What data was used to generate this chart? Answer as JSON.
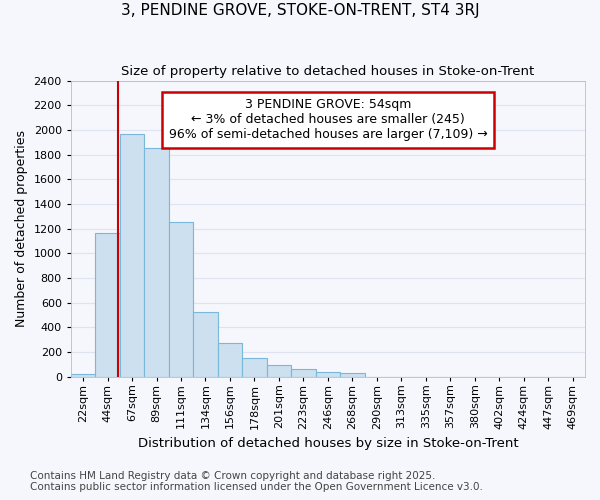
{
  "title": "3, PENDINE GROVE, STOKE-ON-TRENT, ST4 3RJ",
  "subtitle": "Size of property relative to detached houses in Stoke-on-Trent",
  "xlabel": "Distribution of detached houses by size in Stoke-on-Trent",
  "ylabel": "Number of detached properties",
  "footnote1": "Contains HM Land Registry data © Crown copyright and database right 2025.",
  "footnote2": "Contains public sector information licensed under the Open Government Licence v3.0.",
  "annotation_title": "3 PENDINE GROVE: 54sqm",
  "annotation_line1": "← 3% of detached houses are smaller (245)",
  "annotation_line2": "96% of semi-detached houses are larger (7,109) →",
  "bar_edge_color": "#7ab8d9",
  "bar_face_color": "#cce0f0",
  "vline_color": "#cc0000",
  "anno_box_color": "#cc0000",
  "categories": [
    "22sqm",
    "44sqm",
    "67sqm",
    "89sqm",
    "111sqm",
    "134sqm",
    "156sqm",
    "178sqm",
    "201sqm",
    "223sqm",
    "246sqm",
    "268sqm",
    "290sqm",
    "313sqm",
    "335sqm",
    "357sqm",
    "380sqm",
    "402sqm",
    "424sqm",
    "447sqm",
    "469sqm"
  ],
  "values": [
    25,
    1165,
    1970,
    1855,
    1250,
    520,
    270,
    150,
    90,
    60,
    40,
    30,
    0,
    0,
    0,
    0,
    0,
    0,
    0,
    0,
    0
  ],
  "ylim": [
    0,
    2400
  ],
  "yticks": [
    0,
    200,
    400,
    600,
    800,
    1000,
    1200,
    1400,
    1600,
    1800,
    2000,
    2200,
    2400
  ],
  "bg_color": "#f5f7fc",
  "grid_color": "#dde4f0",
  "title_fontsize": 11,
  "subtitle_fontsize": 9.5,
  "ylabel_fontsize": 9,
  "xlabel_fontsize": 9.5,
  "tick_fontsize": 8,
  "anno_fontsize": 9,
  "footnote_fontsize": 7.5
}
